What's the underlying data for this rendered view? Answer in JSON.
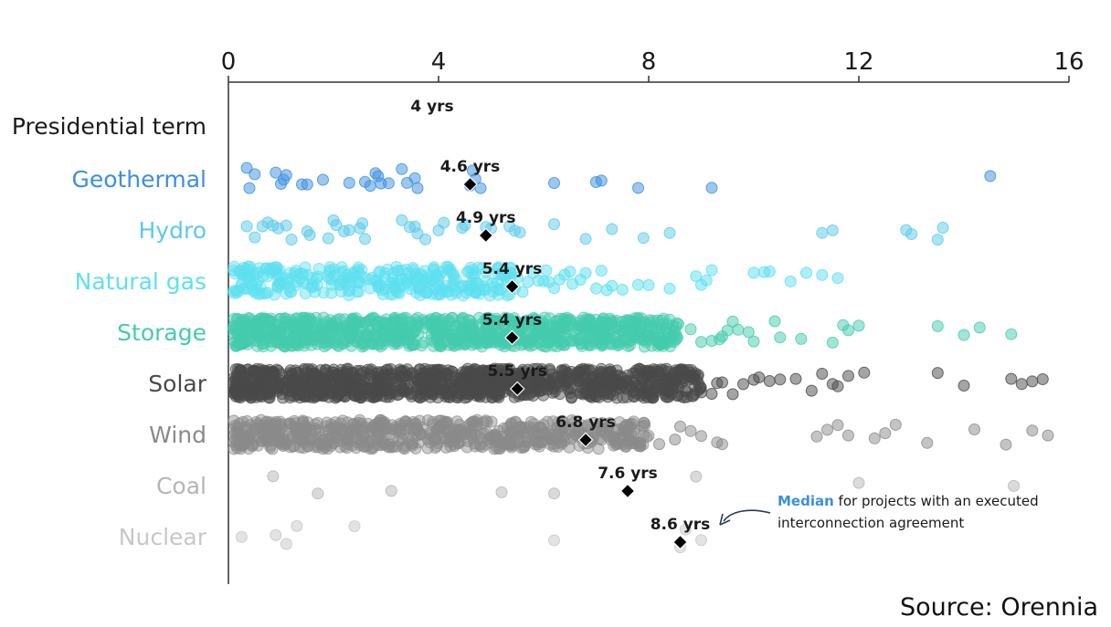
{
  "chart_data": {
    "type": "scatter",
    "title": "",
    "xlabel": "",
    "ylabel": "",
    "xlim": [
      0,
      16
    ],
    "x_ticks": [
      0,
      4,
      8,
      12,
      16
    ],
    "x_tick_labels": [
      "0",
      "4",
      "8",
      "12",
      "16"
    ],
    "grid": false,
    "reference": {
      "category": "Presidential term",
      "value": 4,
      "label": "4 yrs"
    },
    "series": [
      {
        "name": "Geothermal",
        "color": "#3b8fe0",
        "median": 4.6,
        "median_label": "4.6 yrs",
        "x": [
          0.35,
          0.4,
          0.5,
          0.9,
          1.0,
          1.05,
          1.1,
          1.4,
          1.5,
          1.8,
          2.3,
          2.6,
          2.7,
          2.8,
          2.85,
          2.9,
          3.05,
          3.3,
          3.4,
          3.55,
          3.6,
          4.6,
          4.65,
          4.7,
          4.8,
          6.2,
          7.0,
          7.1,
          7.8,
          9.2,
          14.5
        ],
        "density": 0
      },
      {
        "name": "Hydro",
        "color": "#5ccaea",
        "median": 4.9,
        "median_label": "4.9 yrs",
        "x": [
          0.35,
          0.5,
          0.65,
          0.75,
          0.85,
          0.95,
          1.1,
          1.2,
          1.5,
          1.55,
          1.9,
          2.0,
          2.05,
          2.2,
          2.3,
          2.5,
          2.55,
          2.6,
          3.3,
          3.45,
          3.55,
          3.6,
          3.75,
          4.0,
          4.1,
          4.45,
          4.5,
          4.9,
          5.0,
          5.35,
          5.45,
          5.55,
          6.2,
          6.8,
          7.3,
          7.9,
          8.4,
          11.3,
          11.5,
          12.9,
          13.0,
          13.5,
          13.6
        ],
        "density": 0
      },
      {
        "name": "Natural gas",
        "color": "#5ee0ef",
        "median": 5.4,
        "median_label": "5.4 yrs",
        "x": [
          5.2,
          5.3,
          5.45,
          5.5,
          5.6,
          5.7,
          5.8,
          5.9,
          6.0,
          6.05,
          6.1,
          6.2,
          6.3,
          6.4,
          6.5,
          6.55,
          6.7,
          6.8,
          7.0,
          7.1,
          7.2,
          7.3,
          7.5,
          7.8,
          8.0,
          8.4,
          8.9,
          9.0,
          9.1,
          9.2,
          10.0,
          10.2,
          10.3,
          10.7,
          11.0,
          11.3,
          11.6
        ],
        "density": 300,
        "dense_range": [
          0.1,
          5.4
        ]
      },
      {
        "name": "Storage",
        "color": "#44cbae",
        "median": 5.4,
        "median_label": "5.4 yrs",
        "x": [
          8.8,
          9.0,
          9.2,
          9.35,
          9.4,
          9.5,
          9.6,
          9.7,
          9.9,
          10.0,
          10.4,
          10.5,
          10.9,
          11.5,
          11.7,
          11.8,
          12.0,
          13.5,
          14.0,
          14.3,
          14.9
        ],
        "density": 950,
        "dense_range": [
          0.1,
          8.6
        ]
      },
      {
        "name": "Solar",
        "color": "#4a4a4a",
        "median": 5.5,
        "median_label": "5.5 yrs",
        "x": [
          9.0,
          9.2,
          9.3,
          9.4,
          9.6,
          9.8,
          10.0,
          10.1,
          10.3,
          10.5,
          10.8,
          11.1,
          11.3,
          11.5,
          11.6,
          11.8,
          12.1,
          13.5,
          14.0,
          14.9,
          15.1,
          15.3,
          15.5
        ],
        "density": 1100,
        "dense_range": [
          0.1,
          9.0
        ]
      },
      {
        "name": "Wind",
        "color": "#8a8a8a",
        "median": 6.8,
        "median_label": "6.8 yrs",
        "x": [
          8.2,
          8.5,
          8.6,
          8.8,
          9.0,
          9.3,
          9.4,
          11.2,
          11.4,
          11.6,
          11.8,
          12.3,
          12.5,
          12.7,
          13.3,
          14.2,
          14.8,
          15.3,
          15.6
        ],
        "density": 650,
        "dense_range": [
          0.1,
          8.0
        ]
      },
      {
        "name": "Coal",
        "color": "#b5b5b5",
        "median": 7.6,
        "median_label": "7.6 yrs",
        "x": [
          0.85,
          1.7,
          3.1,
          5.2,
          6.2,
          8.9,
          12.0,
          14.95
        ],
        "density": 0
      },
      {
        "name": "Nuclear",
        "color": "#c7c7c7",
        "median": 8.6,
        "median_label": "8.6 yrs",
        "x": [
          0.25,
          0.9,
          1.1,
          1.3,
          2.4,
          6.2,
          8.6,
          8.7,
          9.0
        ],
        "density": 0
      }
    ],
    "annotation": {
      "highlight": "Median",
      "line1_rest": " for projects with an executed",
      "line2": "interconnection agreement",
      "highlight_color": "#3b8fe0"
    }
  },
  "source": "Source: Orennia"
}
